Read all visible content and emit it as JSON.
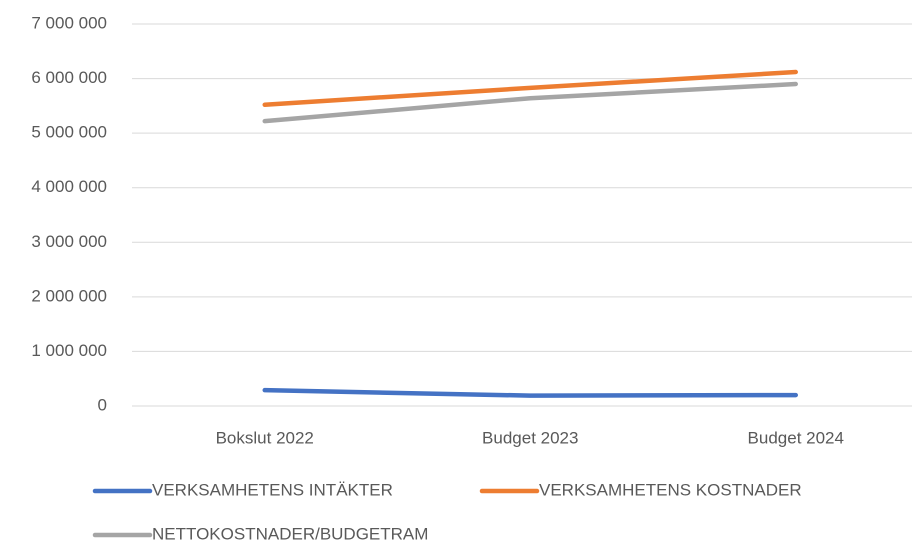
{
  "chart_data": {
    "type": "line",
    "categories": [
      "Bokslut 2022",
      "Budget 2023",
      "Budget 2024"
    ],
    "series": [
      {
        "name": "VERKSAMHETENS INTÄKTER",
        "color": "#4472c4",
        "values": [
          290000,
          190000,
          200000
        ]
      },
      {
        "name": "VERKSAMHETENS KOSTNADER",
        "color": "#ed7d31",
        "values": [
          5520000,
          5830000,
          6120000
        ]
      },
      {
        "name": "NETTOKOSTNADER/BUDGETRAM",
        "color": "#a5a5a5",
        "values": [
          5220000,
          5640000,
          5900000
        ]
      }
    ],
    "ylim": [
      0,
      7000000
    ],
    "yticks": [
      0,
      {
        "value": 1000000,
        "label": "1 000 000"
      },
      {
        "value": 2000000,
        "label": "2 000 000"
      },
      {
        "value": 3000000,
        "label": "3 000 000"
      },
      {
        "value": 4000000,
        "label": "4 000 000"
      },
      {
        "value": 5000000,
        "label": "5 000 000"
      },
      {
        "value": 6000000,
        "label": "6 000 000"
      },
      {
        "value": 7000000,
        "label": "7 000 000"
      }
    ],
    "grid": true,
    "legend": "bottom"
  }
}
